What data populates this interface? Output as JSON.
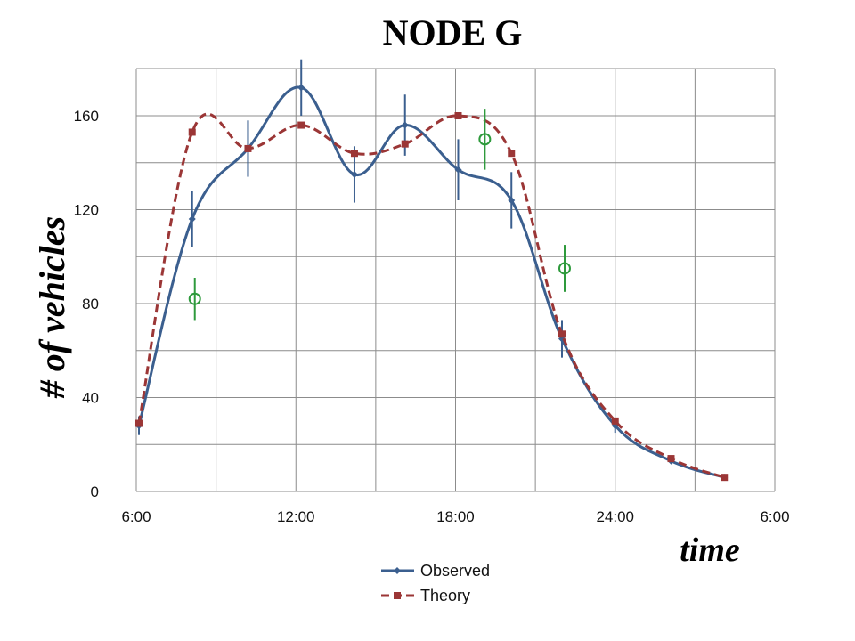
{
  "chart_data": {
    "type": "line",
    "title": "NODE G",
    "xlabel": "time",
    "ylabel": "# of vehicles",
    "x_ticks": [
      "6:00",
      "12:00",
      "18:00",
      "24:00",
      "6:00"
    ],
    "x_tick_hours": [
      6,
      12,
      18,
      24,
      30
    ],
    "y_ticks": [
      "0",
      "40",
      "80",
      "120",
      "160"
    ],
    "y_tick_values": [
      0,
      40,
      80,
      120,
      160
    ],
    "xlim": [
      6,
      30
    ],
    "ylim": [
      0,
      180
    ],
    "grid": true,
    "legend_position": "bottom-center",
    "series": [
      {
        "name": "Observed",
        "color": "#3b5f8f",
        "marker": "diamond",
        "line_style": "solid",
        "x": [
          6.1,
          8.1,
          10.2,
          12.2,
          14.2,
          16.1,
          18.1,
          20.1,
          22.0,
          24.0,
          26.1,
          28.1
        ],
        "y": [
          28,
          116,
          146,
          172,
          135,
          156,
          137,
          124,
          65,
          28,
          13,
          6
        ],
        "error": [
          4,
          12,
          12,
          12,
          12,
          13,
          13,
          12,
          8,
          3,
          0,
          0
        ]
      },
      {
        "name": "Theory",
        "color": "#9b3636",
        "marker": "square",
        "line_style": "dashed",
        "x": [
          6.1,
          8.1,
          10.2,
          12.2,
          14.2,
          16.1,
          18.1,
          20.1,
          22.0,
          24.0,
          26.1,
          28.1
        ],
        "y": [
          29,
          153,
          146,
          156,
          144,
          148,
          160,
          144,
          67,
          30,
          14,
          6
        ]
      },
      {
        "color": "#2e9a3c",
        "marker": "open-circle",
        "line_style": "none",
        "x": [
          8.2,
          19.1,
          22.1
        ],
        "y": [
          82,
          150,
          95
        ],
        "error": [
          9,
          13,
          10
        ]
      }
    ]
  }
}
